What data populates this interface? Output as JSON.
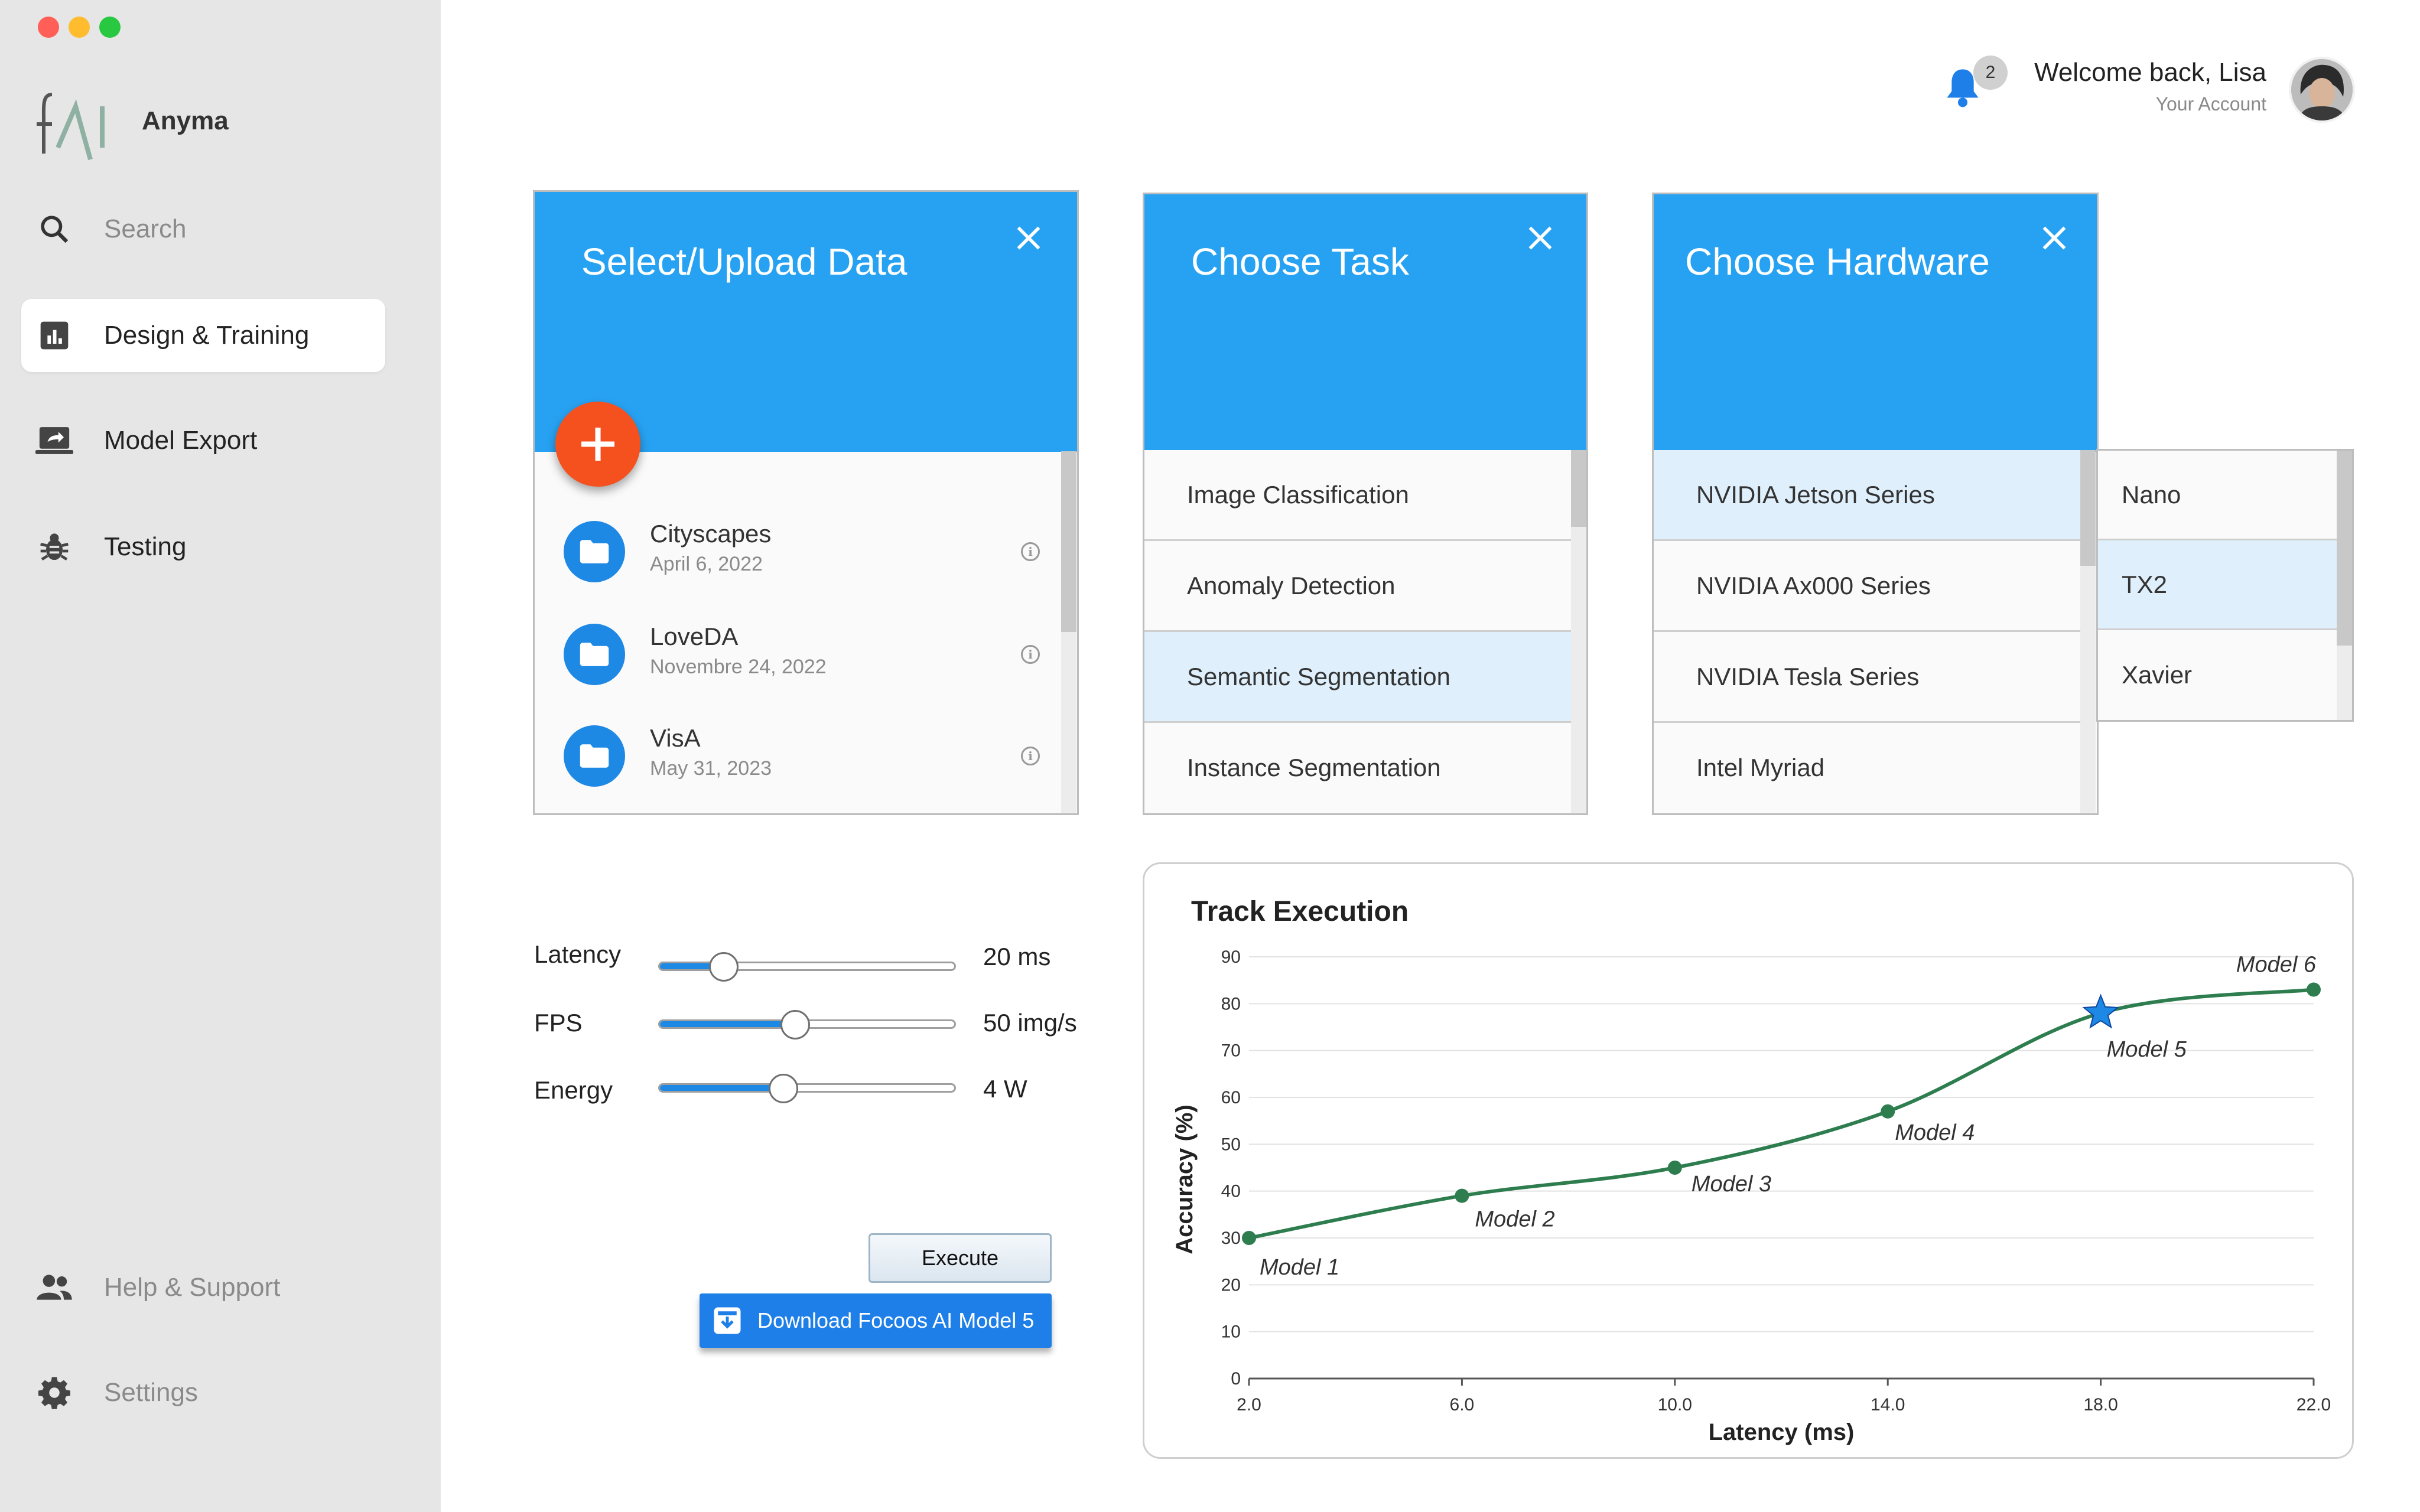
{
  "app": {
    "name": "Anyma"
  },
  "window_controls": {
    "close_color": "#ff5f57",
    "minimize_color": "#febc2e",
    "maximize_color": "#28c840"
  },
  "sidebar": {
    "items": [
      {
        "label": "Search",
        "icon": "search-icon"
      },
      {
        "label": "Design & Training",
        "icon": "bar-chart-icon",
        "active": true
      },
      {
        "label": "Model Export",
        "icon": "export-screen-icon"
      },
      {
        "label": "Testing",
        "icon": "bug-icon"
      }
    ],
    "bottom_items": [
      {
        "label": "Help & Support",
        "icon": "people-icon"
      },
      {
        "label": "Settings",
        "icon": "gear-icon"
      }
    ]
  },
  "header": {
    "notification_count": "2",
    "welcome": "Welcome back, Lisa",
    "account_link": "Your Account"
  },
  "data_panel": {
    "title": "Select/Upload Data",
    "datasets": [
      {
        "name": "Cityscapes",
        "date": "April 6, 2022"
      },
      {
        "name": "LoveDA",
        "date": "Novembre 24, 2022"
      },
      {
        "name": "VisA",
        "date": "May 31, 2023"
      }
    ]
  },
  "task_panel": {
    "title": "Choose Task",
    "items": [
      "Image Classification",
      "Anomaly Detection",
      "Semantic Segmentation",
      "Instance Segmentation"
    ],
    "selected": "Semantic Segmentation"
  },
  "hardware_panel": {
    "title": "Choose Hardware",
    "series": [
      "NVIDIA Jetson Series",
      "NVIDIA Ax000 Series",
      "NVIDIA Tesla Series",
      "Intel Myriad"
    ],
    "selected_series": "NVIDIA Jetson Series",
    "devices": [
      "Nano",
      "TX2",
      "Xavier"
    ],
    "selected_device": "TX2"
  },
  "constraints": {
    "latency": {
      "label": "Latency",
      "value": "20 ms",
      "fraction": 0.22
    },
    "fps": {
      "label": "FPS",
      "value": "50 img/s",
      "fraction": 0.46
    },
    "energy": {
      "label": "Energy",
      "value": "4 W",
      "fraction": 0.42
    }
  },
  "actions": {
    "execute": "Execute",
    "download": "Download Focoos AI Model 5"
  },
  "accent_color": "#27a2f2",
  "chart_data": {
    "type": "line",
    "title": "Track Execution",
    "xlabel": "Latency (ms)",
    "ylabel": "Accuracy (%)",
    "xlim": [
      2,
      22
    ],
    "ylim": [
      0,
      90
    ],
    "x_ticks": [
      "2.0",
      "6.0",
      "10.0",
      "14.0",
      "18.0",
      "22.0"
    ],
    "y_ticks": [
      "0",
      "10",
      "20",
      "30",
      "40",
      "50",
      "60",
      "70",
      "80",
      "90"
    ],
    "grid": true,
    "line_color": "#2e7d4f",
    "highlight_color": "#1e88e5",
    "points": [
      {
        "label": "Model 1",
        "x": 2.0,
        "y": 30
      },
      {
        "label": "Model 2",
        "x": 6.0,
        "y": 39
      },
      {
        "label": "Model 3",
        "x": 10.0,
        "y": 45
      },
      {
        "label": "Model 4",
        "x": 14.0,
        "y": 57
      },
      {
        "label": "Model 5",
        "x": 18.0,
        "y": 78,
        "highlighted": true
      },
      {
        "label": "Model 6",
        "x": 22.0,
        "y": 83
      }
    ]
  }
}
